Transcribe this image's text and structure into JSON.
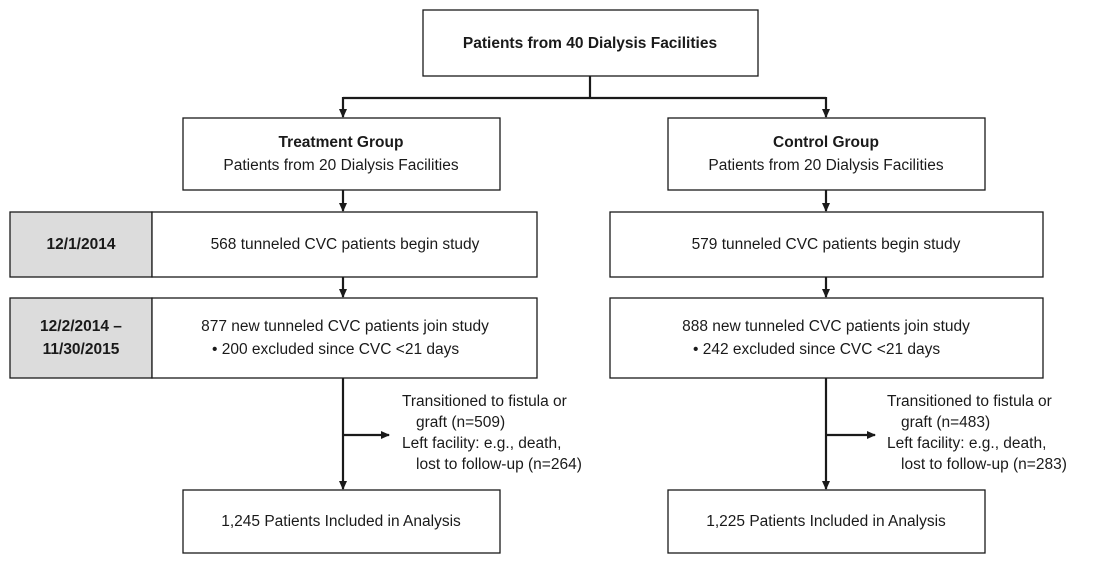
{
  "top": {
    "label": "Patients from 40 Dialysis Facilities"
  },
  "dates": [
    {
      "lines": [
        "12/1/2014"
      ]
    },
    {
      "lines": [
        "12/2/2014 –",
        "11/30/2015"
      ]
    }
  ],
  "groups": [
    {
      "title": "Treatment Group",
      "subtitle": "Patients from 20 Dialysis Facilities",
      "begin": "568 tunneled CVC patients begin study",
      "join": "877 new tunneled CVC patients join study",
      "excluded": "• 200 excluded since CVC <21 days",
      "exits": [
        "Transitioned to fistula or",
        "graft (n=509)",
        "Left facility: e.g., death,",
        "lost to follow-up (n=264)"
      ],
      "final": "1,245 Patients Included in Analysis"
    },
    {
      "title": "Control Group",
      "subtitle": "Patients from 20 Dialysis Facilities",
      "begin": "579 tunneled CVC patients begin study",
      "join": "888 new tunneled CVC patients join study",
      "excluded": "• 242 excluded since CVC <21 days",
      "exits": [
        "Transitioned to fistula or",
        "graft (n=483)",
        "Left facility: e.g., death,",
        "lost to follow-up (n=283)"
      ],
      "final": "1,225 Patients Included in Analysis"
    }
  ]
}
